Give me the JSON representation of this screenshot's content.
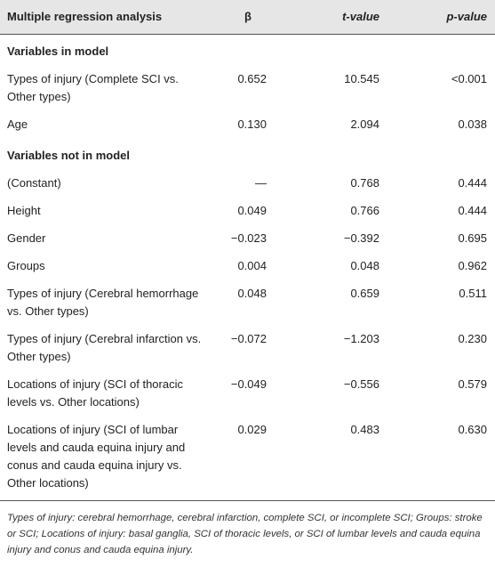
{
  "table": {
    "header": [
      "Multiple regression analysis",
      "β",
      "t-value",
      "p-value"
    ],
    "rows": [
      [
        "Variables in model"
      ],
      [
        "Types of injury (Complete SCI vs. Other types)",
        "0.652",
        "10.545",
        "<0.001"
      ],
      [
        "Age",
        "0.130",
        "2.094",
        "0.038"
      ],
      [
        "Variables not in model"
      ],
      [
        "(Constant)",
        "—",
        "0.768",
        "0.444"
      ],
      [
        "Height",
        "0.049",
        "0.766",
        "0.444"
      ],
      [
        "Gender",
        "−0.023",
        "−0.392",
        "0.695"
      ],
      [
        "Groups",
        "0.004",
        "0.048",
        "0.962"
      ],
      [
        "Types of injury (Cerebral hemorrhage vs. Other types)",
        "0.048",
        "0.659",
        "0.511"
      ],
      [
        "Types of injury (Cerebral infarction vs. Other types)",
        "−0.072",
        "−1.203",
        "0.230"
      ],
      [
        "Locations of injury (SCI of thoracic levels vs. Other locations)",
        "−0.049",
        "−0.556",
        "0.579"
      ],
      [
        "Locations of injury (SCI of lumbar levels and cauda equina injury and conus and cauda equina injury vs. Other locations)",
        "0.029",
        "0.483",
        "0.630"
      ]
    ],
    "footnote": "Types of injury: cerebral hemorrhage, cerebral infarction, complete SCI, or incomplete SCI; Groups: stroke or SCI; Locations of injury: basal ganglia, SCI of thoracic levels, or SCI of lumbar levels and cauda equina injury and conus and cauda equina injury."
  }
}
